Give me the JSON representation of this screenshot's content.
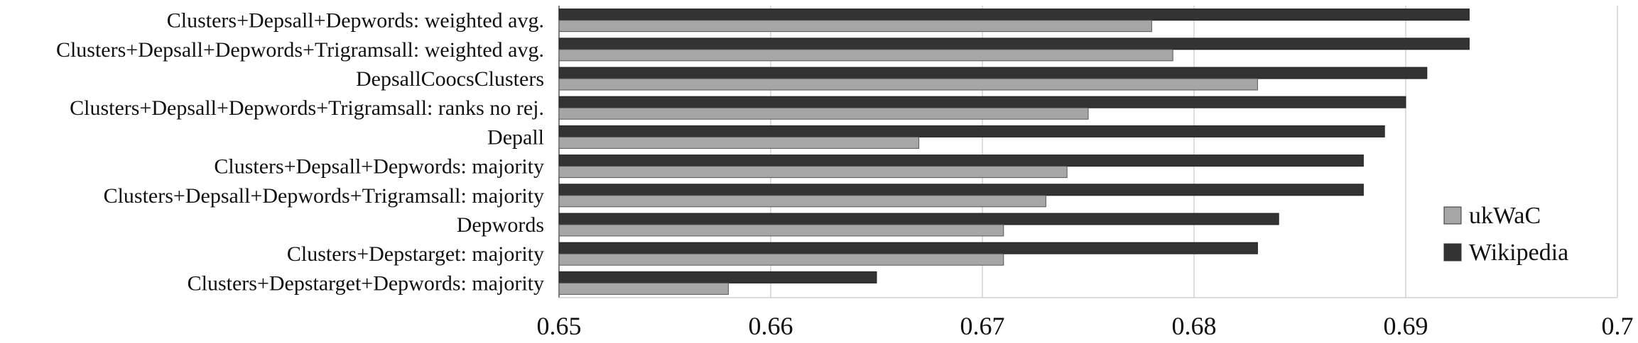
{
  "chart_data": {
    "type": "bar",
    "orientation": "horizontal",
    "title": "",
    "xlabel": "",
    "ylabel": "",
    "xlim": [
      0.65,
      0.7
    ],
    "x_ticks": [
      "0.65",
      "0.66",
      "0.67",
      "0.68",
      "0.69",
      "0.7"
    ],
    "x_tick_values": [
      0.65,
      0.66,
      0.67,
      0.68,
      0.69,
      0.7
    ],
    "grid": "vertical",
    "legend_position": "right",
    "categories": [
      "Clusters+Depsall+Depwords: weighted avg.",
      "Clusters+Depsall+Depwords+Trigramsall: weighted avg.",
      "DepsallCoocsClusters",
      "Clusters+Depsall+Depwords+Trigramsall: ranks no rej.",
      "Depall",
      "Clusters+Depsall+Depwords: majority",
      "Clusters+Depsall+Depwords+Trigramsall: majority",
      "Depwords",
      "Clusters+Depstarget: majority",
      "Clusters+Depstarget+Depwords: majority"
    ],
    "series": [
      {
        "name": "Wikipedia",
        "color": "#333333",
        "values": [
          0.693,
          0.693,
          0.691,
          0.69,
          0.689,
          0.688,
          0.688,
          0.684,
          0.683,
          0.665
        ]
      },
      {
        "name": "ukWaC",
        "color": "#a6a6a6",
        "values": [
          0.678,
          0.679,
          0.683,
          0.675,
          0.667,
          0.674,
          0.673,
          0.671,
          0.671,
          0.658
        ]
      }
    ],
    "legend": [
      {
        "name": "ukWaC",
        "color": "#a6a6a6"
      },
      {
        "name": "Wikipedia",
        "color": "#333333"
      }
    ]
  }
}
